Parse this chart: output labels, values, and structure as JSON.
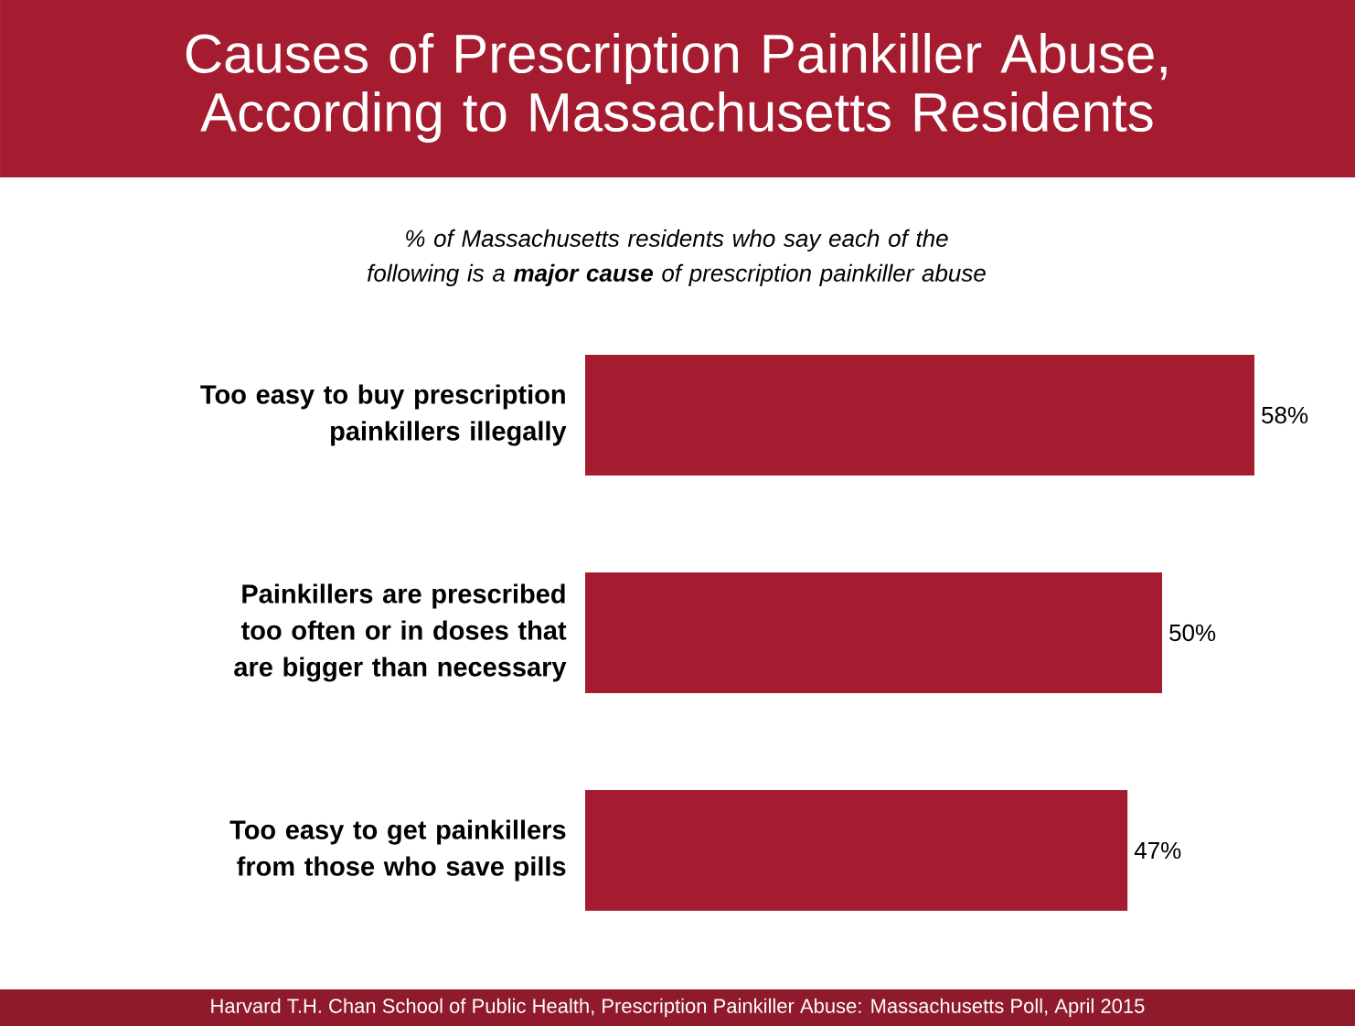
{
  "chart_data": {
    "type": "bar",
    "orientation": "horizontal",
    "title": "Causes of Prescription Painkiller Abuse, According to Massachusetts Residents",
    "subtitle": "% of Massachusetts residents who say each of the following is a **major cause** of prescription painkiller abuse",
    "categories": [
      "Too easy to buy prescription painkillers illegally",
      "Painkillers are prescribed too often or in doses that are bigger than necessary",
      "Too easy to get painkillers from those who save pills"
    ],
    "values": [
      58,
      50,
      47
    ],
    "color": "#a51c30",
    "value_labels": [
      "58%",
      "50%",
      "47%"
    ],
    "annotations": [
      "Harvard T.H. Chan School of Public Health, Prescription Painkiller Abuse: Massachusetts Poll, April 2015"
    ]
  }
}
